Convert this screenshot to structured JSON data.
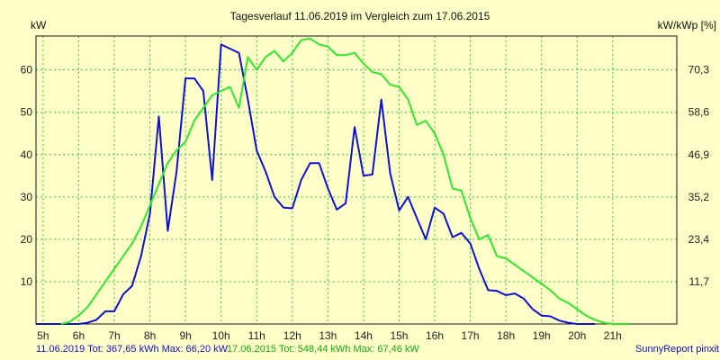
{
  "chart_data": {
    "type": "line",
    "title": "Tagesverlauf 11.06.2019 im Vergleich zum 17.06.2015",
    "ylabel_left": "kW",
    "ylabel_right": "kW/kWp [%]",
    "xlim": [
      4.8,
      22.8
    ],
    "ylim": [
      0,
      68
    ],
    "x_ticks": [
      {
        "x": 5,
        "label": "5h"
      },
      {
        "x": 6,
        "label": "6h"
      },
      {
        "x": 7,
        "label": "7h"
      },
      {
        "x": 8,
        "label": "8h"
      },
      {
        "x": 9,
        "label": "9h"
      },
      {
        "x": 10,
        "label": "10h"
      },
      {
        "x": 11,
        "label": "11h"
      },
      {
        "x": 12,
        "label": "12h"
      },
      {
        "x": 13,
        "label": "13h"
      },
      {
        "x": 14,
        "label": "14h"
      },
      {
        "x": 15,
        "label": "15h"
      },
      {
        "x": 16,
        "label": "16h"
      },
      {
        "x": 17,
        "label": "17h"
      },
      {
        "x": 18,
        "label": "18h"
      },
      {
        "x": 19,
        "label": "19h"
      },
      {
        "x": 20,
        "label": "20h"
      },
      {
        "x": 21,
        "label": "21h"
      }
    ],
    "y_ticks_left": [
      {
        "y": 10,
        "label": "10"
      },
      {
        "y": 20,
        "label": "20"
      },
      {
        "y": 30,
        "label": "30"
      },
      {
        "y": 40,
        "label": "40"
      },
      {
        "y": 50,
        "label": "50"
      },
      {
        "y": 60,
        "label": "60"
      }
    ],
    "y_ticks_right": [
      {
        "y": 10,
        "label": "11,7"
      },
      {
        "y": 20,
        "label": "23,4"
      },
      {
        "y": 30,
        "label": "35,2"
      },
      {
        "y": 40,
        "label": "46,9"
      },
      {
        "y": 50,
        "label": "58,6"
      },
      {
        "y": 60,
        "label": "70,3"
      }
    ],
    "grid": true,
    "series": [
      {
        "name": "11.06.2019",
        "color": "#1010d0",
        "points": [
          [
            4.8,
            0
          ],
          [
            5.5,
            0
          ],
          [
            6.0,
            0
          ],
          [
            6.25,
            0.3
          ],
          [
            6.5,
            1
          ],
          [
            6.75,
            3
          ],
          [
            7.0,
            3
          ],
          [
            7.25,
            7
          ],
          [
            7.5,
            9
          ],
          [
            7.75,
            16
          ],
          [
            8.0,
            26
          ],
          [
            8.25,
            49
          ],
          [
            8.5,
            22
          ],
          [
            8.75,
            36
          ],
          [
            9.0,
            58
          ],
          [
            9.25,
            58
          ],
          [
            9.5,
            55
          ],
          [
            9.75,
            34
          ],
          [
            10.0,
            66
          ],
          [
            10.25,
            65
          ],
          [
            10.5,
            64
          ],
          [
            10.75,
            53
          ],
          [
            11.0,
            41
          ],
          [
            11.25,
            36
          ],
          [
            11.5,
            30
          ],
          [
            11.75,
            27.5
          ],
          [
            12.0,
            27.3
          ],
          [
            12.25,
            34
          ],
          [
            12.5,
            38
          ],
          [
            12.75,
            38
          ],
          [
            13.0,
            32
          ],
          [
            13.25,
            27
          ],
          [
            13.5,
            28.5
          ],
          [
            13.75,
            46.5
          ],
          [
            14.0,
            35
          ],
          [
            14.25,
            35.3
          ],
          [
            14.5,
            53
          ],
          [
            14.75,
            35.5
          ],
          [
            15.0,
            26.8
          ],
          [
            15.25,
            30
          ],
          [
            15.5,
            25
          ],
          [
            15.75,
            20
          ],
          [
            16.0,
            27.5
          ],
          [
            16.25,
            26
          ],
          [
            16.5,
            20.5
          ],
          [
            16.75,
            21.5
          ],
          [
            17.0,
            19
          ],
          [
            17.25,
            13
          ],
          [
            17.5,
            8
          ],
          [
            17.75,
            7.8
          ],
          [
            18.0,
            6.8
          ],
          [
            18.25,
            7.2
          ],
          [
            18.5,
            6
          ],
          [
            18.75,
            3.5
          ],
          [
            19.0,
            2
          ],
          [
            19.25,
            1.8
          ],
          [
            19.5,
            0.8
          ],
          [
            19.75,
            0.3
          ],
          [
            20.0,
            0
          ],
          [
            20.5,
            0
          ]
        ]
      },
      {
        "name": "17.06.2015",
        "color": "#2ee82e",
        "points": [
          [
            5.5,
            0
          ],
          [
            5.75,
            0.5
          ],
          [
            6.0,
            2
          ],
          [
            6.25,
            4
          ],
          [
            6.5,
            7
          ],
          [
            6.75,
            10
          ],
          [
            7.0,
            13
          ],
          [
            7.25,
            16
          ],
          [
            7.5,
            19
          ],
          [
            7.75,
            23
          ],
          [
            8.0,
            28
          ],
          [
            8.25,
            33
          ],
          [
            8.5,
            38
          ],
          [
            8.75,
            41
          ],
          [
            9.0,
            43
          ],
          [
            9.25,
            48
          ],
          [
            9.5,
            51
          ],
          [
            9.75,
            54
          ],
          [
            10.0,
            55
          ],
          [
            10.25,
            56
          ],
          [
            10.5,
            51
          ],
          [
            10.75,
            63
          ],
          [
            11.0,
            60
          ],
          [
            11.25,
            63
          ],
          [
            11.5,
            64.5
          ],
          [
            11.75,
            62
          ],
          [
            12.0,
            64
          ],
          [
            12.25,
            67
          ],
          [
            12.5,
            67.4
          ],
          [
            12.75,
            66
          ],
          [
            13.0,
            65.5
          ],
          [
            13.25,
            63.5
          ],
          [
            13.5,
            63.5
          ],
          [
            13.75,
            64
          ],
          [
            14.0,
            61.5
          ],
          [
            14.25,
            59.5
          ],
          [
            14.5,
            59
          ],
          [
            14.75,
            56.5
          ],
          [
            15.0,
            56
          ],
          [
            15.25,
            53
          ],
          [
            15.5,
            47
          ],
          [
            15.75,
            48
          ],
          [
            16.0,
            45
          ],
          [
            16.25,
            40
          ],
          [
            16.5,
            32
          ],
          [
            16.75,
            31.5
          ],
          [
            17.0,
            25
          ],
          [
            17.25,
            20
          ],
          [
            17.5,
            21
          ],
          [
            17.75,
            16
          ],
          [
            18.0,
            15.5
          ],
          [
            18.25,
            14
          ],
          [
            18.5,
            12.5
          ],
          [
            18.75,
            11
          ],
          [
            19.0,
            9.5
          ],
          [
            19.25,
            8
          ],
          [
            19.5,
            6
          ],
          [
            19.75,
            5
          ],
          [
            20.0,
            3.5
          ],
          [
            20.25,
            2
          ],
          [
            20.5,
            1
          ],
          [
            20.75,
            0.3
          ],
          [
            21.0,
            0
          ],
          [
            21.5,
            0
          ]
        ]
      }
    ]
  },
  "footer": {
    "series1_summary": "11.06.2019 Tot: 367,65 kWh Max: 66,20 kW",
    "series2_summary": "17.06.2015 Tot: 548,44 kWh Max: 67,46 kW",
    "credit": "SunnyReport pinxit"
  }
}
